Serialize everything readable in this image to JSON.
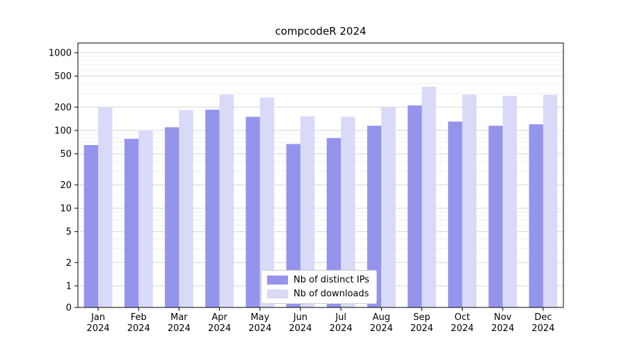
{
  "title": "compcodeR 2024",
  "colors": {
    "ips_bar": "#9494ec",
    "downloads_bar": "#d9d9f8",
    "major_grid": "#d4d4d4",
    "minor_grid": "#ececec",
    "axis": "#000000"
  },
  "chart_data": {
    "type": "bar",
    "title": "compcodeR 2024",
    "categories": [
      "Jan",
      "Feb",
      "Mar",
      "Apr",
      "May",
      "Jun",
      "Jul",
      "Aug",
      "Sep",
      "Oct",
      "Nov",
      "Dec"
    ],
    "year": "2024",
    "series": [
      {
        "name": "Nb of distinct IPs",
        "color": "#9494ec",
        "values": [
          65,
          78,
          110,
          185,
          150,
          67,
          80,
          115,
          210,
          130,
          115,
          120
        ]
      },
      {
        "name": "Nb of downloads",
        "color": "#d9d9f8",
        "values": [
          197,
          100,
          183,
          290,
          265,
          152,
          150,
          200,
          365,
          290,
          278,
          288
        ]
      }
    ],
    "yscale": "symlog",
    "yticks": [
      0,
      1,
      2,
      5,
      10,
      20,
      50,
      100,
      200,
      500,
      1000
    ],
    "ylim": [
      0,
      1333
    ],
    "grid": true,
    "legend_position": "lower center"
  }
}
